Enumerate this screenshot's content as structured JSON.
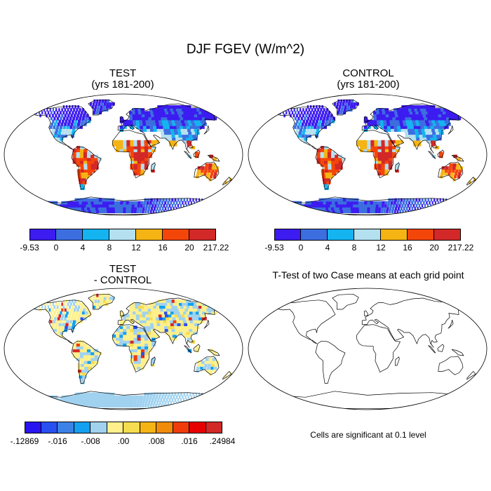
{
  "title": "DJF FGEV (W/m^2)",
  "chart_data": [
    {
      "type": "heatmap",
      "title": "TEST",
      "subtitle": "(yrs 181-200)",
      "projection": "Robinson world map",
      "colorbar": {
        "levels": [
          "-9.53",
          "0",
          "4",
          "8",
          "12",
          "16",
          "20",
          "217.22"
        ],
        "colors": [
          "#3c1cf0",
          "#3c6ee0",
          "#14b4f0",
          "#b4e0f0",
          "#f5b414",
          "#f5460a",
          "#d22828"
        ]
      },
      "summary": "High values (16 to 217.22) over tropical South America, central Africa, Maritime Continent and northern Australia; low values (-9.53 to 4) over high northern latitudes and Antarctica"
    },
    {
      "type": "heatmap",
      "title": "CONTROL",
      "subtitle": "(yrs 181-200)",
      "projection": "Robinson world map",
      "colorbar": {
        "levels": [
          "-9.53",
          "0",
          "4",
          "8",
          "12",
          "16",
          "20",
          "217.22"
        ],
        "colors": [
          "#3c1cf0",
          "#3c6ee0",
          "#14b4f0",
          "#b4e0f0",
          "#f5b414",
          "#f5460a",
          "#d22828"
        ]
      },
      "summary": "Pattern nearly identical to TEST"
    },
    {
      "type": "heatmap",
      "title": "TEST",
      "subtitle": "- CONTROL",
      "projection": "Robinson world map",
      "colorbar": {
        "levels": [
          "-.12869",
          "-.016",
          "-.008",
          ".00",
          ".008",
          ".016",
          ".24984"
        ],
        "colors": [
          "#2814f0",
          "#2850f0",
          "#3c82e6",
          "#14a0f0",
          "#a0d2f0",
          "#fff08c",
          "#f5dc50",
          "#f5b414",
          "#f08c0a",
          "#f03c0a",
          "#e60000",
          "#d22828"
        ]
      },
      "summary": "Differences mostly near zero (pale yellow / light blue) with scattered red and blue cells"
    },
    {
      "type": "heatmap",
      "title": "T-Test of two Case means at each grid point",
      "projection": "Robinson world map",
      "note": "Cells are significant at 0.1 level",
      "summary": "No significant cells shown; coastlines only"
    }
  ]
}
